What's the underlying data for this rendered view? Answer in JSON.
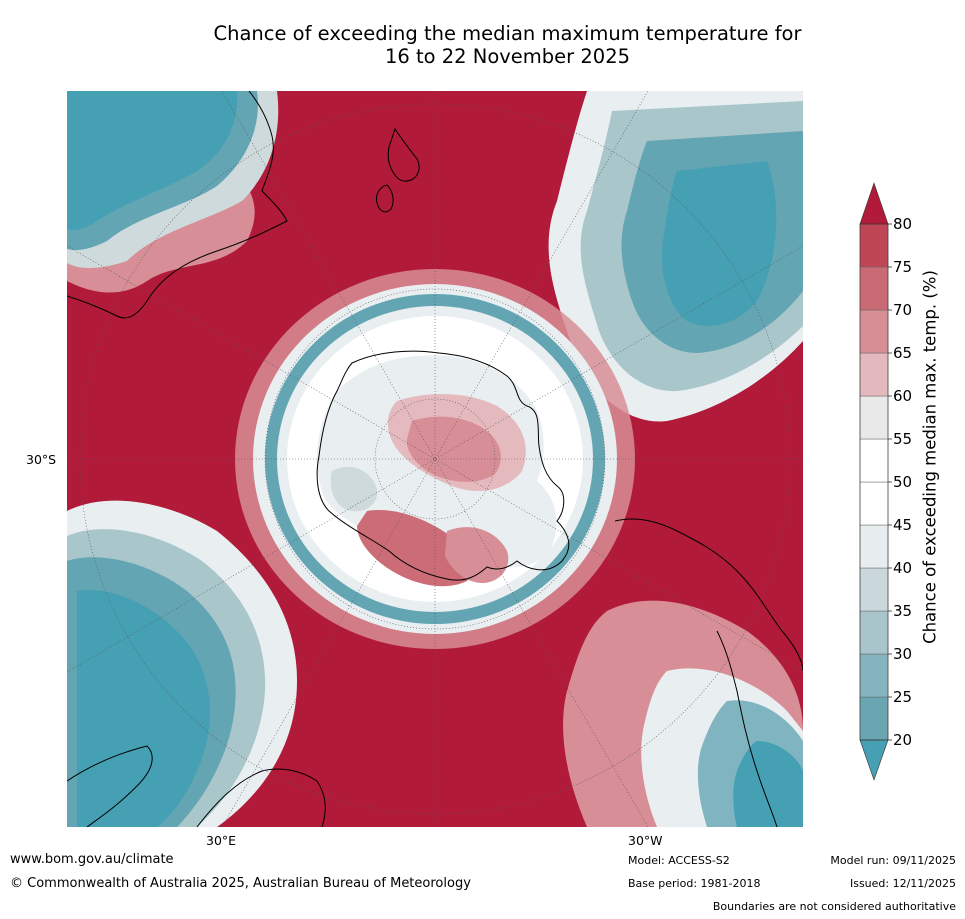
{
  "title": {
    "line1": "Chance of exceeding the median maximum temperature for",
    "line2": "16 to 22 November 2025"
  },
  "map": {
    "lat_label": "30°S",
    "lon_labels": [
      "30°E",
      "30°W"
    ],
    "colors": {
      "high": "#b11a38",
      "r75": "#c24756",
      "r70": "#cc6c77",
      "r65": "#d88e96",
      "r60": "#e4babf",
      "neutral55": "#ebebeb",
      "neutral50": "#ffffff",
      "neutral45": "#e9eef1",
      "b40": "#cfdadc",
      "b35": "#a9c6cb",
      "b30": "#7fb4c0",
      "b25": "#63a5b3",
      "low": "#45a0b3"
    }
  },
  "colorbar": {
    "label": "Chance of exceeding median max. temp. (%)",
    "ticks": [
      "20",
      "25",
      "30",
      "35",
      "40",
      "45",
      "50",
      "55",
      "60",
      "65",
      "70",
      "75",
      "80"
    ],
    "segment_colors": [
      "#6aa5b2",
      "#86b4be",
      "#a7c5cb",
      "#cbd8db",
      "#e8eef0",
      "#ffffff",
      "#ffffff",
      "#e9e9e9",
      "#e3b9bd",
      "#d78e95",
      "#ca6a74",
      "#bf4654"
    ],
    "under_color": "#45a0b3",
    "over_color": "#b11a38"
  },
  "footer": {
    "website": "www.bom.gov.au/climate",
    "copyright": "© Commonwealth of Australia 2025, Australian Bureau of Meteorology",
    "model": "Model: ACCESS-S2",
    "base_period": "Base period: 1981-2018",
    "model_run": "Model run: 09/11/2025",
    "issued": "Issued: 12/11/2025",
    "disclaimer": "Boundaries are not considered authoritative"
  }
}
